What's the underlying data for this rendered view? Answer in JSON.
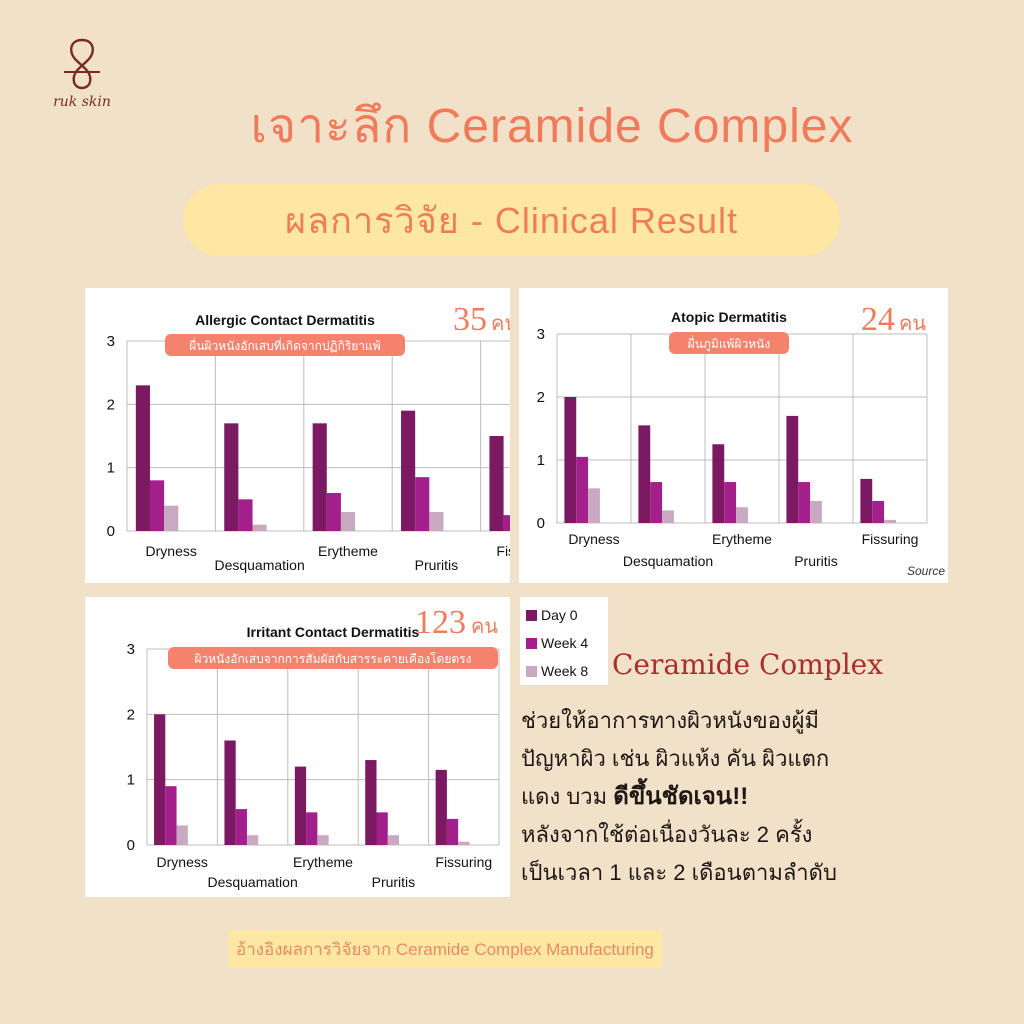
{
  "brand": {
    "logo_text": "ruk skin"
  },
  "header": {
    "title": "เจาะลึก Ceramide Complex",
    "subtitle": "ผลการวิจัย - Clinical Result"
  },
  "colors": {
    "background": "#f2e1c9",
    "title": "#f07a5a",
    "pill": "#fde7a3",
    "badge": "#f4826d",
    "day0": "#7b1a63",
    "week4": "#a21f8c",
    "week8": "#c9a9c1"
  },
  "legend": {
    "items": [
      "Day 0",
      "Week 4",
      "Week 8"
    ]
  },
  "chart_data": [
    {
      "type": "bar",
      "title": "Allergic Contact Dermatitis",
      "count_number": "35",
      "count_unit": "คน",
      "badge": "ผื่นผิวหนังอักเสบที่เกิดจากปฏิกิริยาแพ้",
      "categories": [
        "Dryness",
        "Desquamation",
        "Erytheme",
        "Pruritis",
        "Fissuring"
      ],
      "series": [
        {
          "name": "Day 0",
          "values": [
            2.3,
            1.7,
            1.7,
            1.9,
            1.5
          ]
        },
        {
          "name": "Week 4",
          "values": [
            0.8,
            0.5,
            0.6,
            0.85,
            0.25
          ]
        },
        {
          "name": "Week 8",
          "values": [
            0.4,
            0.1,
            0.3,
            0.3,
            0.05
          ]
        }
      ],
      "ylim": [
        0,
        3
      ],
      "yticks": [
        "0",
        "1",
        "2",
        "3"
      ],
      "grid": true
    },
    {
      "type": "bar",
      "title": "Atopic Dermatitis",
      "count_number": "24",
      "count_unit": "คน",
      "badge": "ผื่นภูมิแพ้ผิวหนัง",
      "source_note": "Source",
      "categories": [
        "Dryness",
        "Desquamation",
        "Erytheme",
        "Pruritis",
        "Fissuring"
      ],
      "series": [
        {
          "name": "Day 0",
          "values": [
            2.0,
            1.55,
            1.25,
            1.7,
            0.7
          ]
        },
        {
          "name": "Week 4",
          "values": [
            1.05,
            0.65,
            0.65,
            0.65,
            0.35
          ]
        },
        {
          "name": "Week 8",
          "values": [
            0.55,
            0.2,
            0.25,
            0.35,
            0.05
          ]
        }
      ],
      "ylim": [
        0,
        3
      ],
      "yticks": [
        "0",
        "1",
        "2",
        "3"
      ],
      "grid": true
    },
    {
      "type": "bar",
      "title": "Irritant Contact Dermatitis",
      "count_number": "123",
      "count_unit": "คน",
      "badge": "ผิวหนังอักเสบจากการสัมผัสกับสารระคายเคืองโดยตรง",
      "categories": [
        "Dryness",
        "Desquamation",
        "Erytheme",
        "Pruritis",
        "Fissuring"
      ],
      "series": [
        {
          "name": "Day 0",
          "values": [
            2.0,
            1.6,
            1.2,
            1.3,
            1.15
          ]
        },
        {
          "name": "Week 4",
          "values": [
            0.9,
            0.55,
            0.5,
            0.5,
            0.4
          ]
        },
        {
          "name": "Week 8",
          "values": [
            0.3,
            0.15,
            0.15,
            0.15,
            0.05
          ]
        }
      ],
      "ylim": [
        0,
        3
      ],
      "yticks": [
        "0",
        "1",
        "2",
        "3"
      ],
      "grid": true
    }
  ],
  "summary": {
    "title": "Ceramide Complex",
    "line1": "ช่วยให้อาการทางผิวหนังของผู้มี",
    "line2": "ปัญหาผิว เช่น ผิวแห้ง  คัน ผิวแตก",
    "line3a": "แดง บวม ",
    "line3b": "ดีขึ้นชัดเจน!!",
    "line4": "หลังจากใช้ต่อเนื่องวันละ 2 ครั้ง",
    "line5": "เป็นเวลา 1 และ 2 เดือนตามลำดับ"
  },
  "reference": "อ้างอิงผลการวิจัยจาก Ceramide Complex Manufacturing"
}
